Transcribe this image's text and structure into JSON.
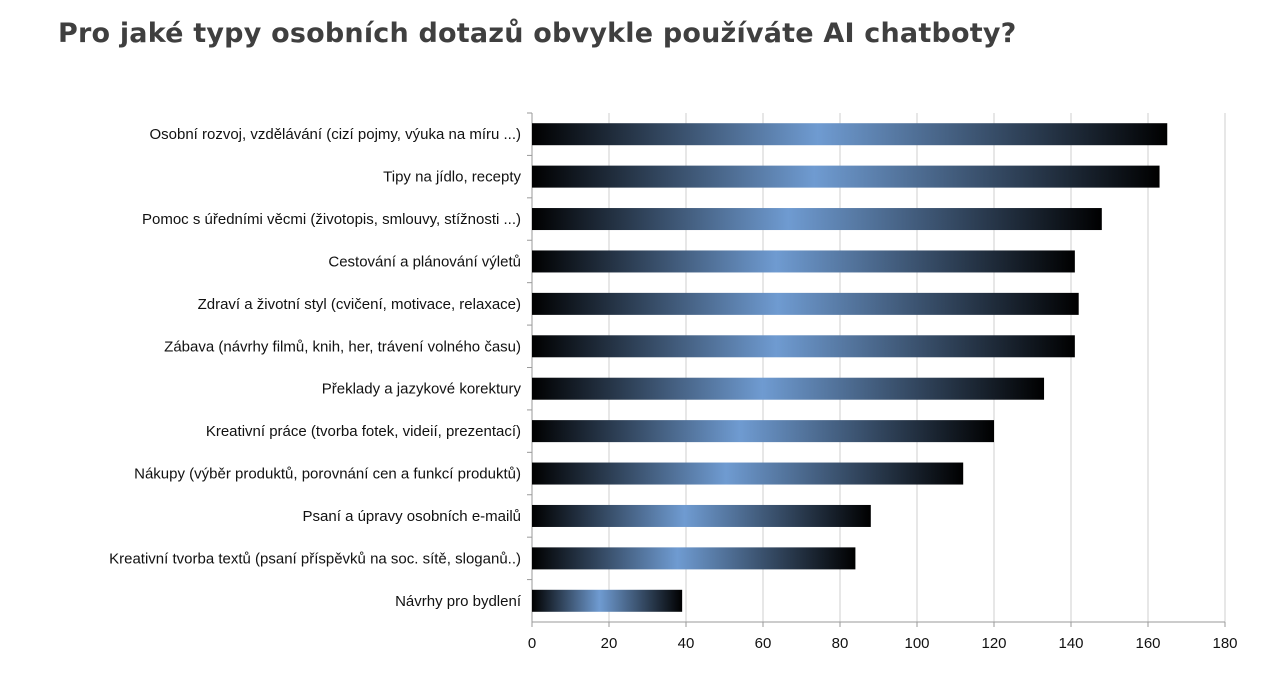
{
  "page": {
    "title": "Pro jaké typy osobních dotazů obvykle používáte AI chatboty?"
  },
  "chart_data": {
    "type": "bar",
    "orientation": "horizontal",
    "title": "",
    "xlabel": "",
    "ylabel": "",
    "categories": [
      "Osobní rozvoj, vzdělávání (cizí pojmy, výuka na míru ...)",
      "Tipy na jídlo, recepty",
      "Pomoc s úředními věcmi (životopis, smlouvy, stížnosti ...)",
      "Cestování a plánování výletů",
      "Zdraví a životní styl (cvičení, motivace, relaxace)",
      "Zábava (návrhy filmů, knih, her, trávení volného času)",
      "Překlady a jazykové korektury",
      "Kreativní práce (tvorba fotek, videií, prezentací)",
      "Nákupy (výběr produktů, porovnání cen a funkcí produktů)",
      "Psaní a úpravy osobních e-mailů",
      "Kreativní tvorba textů (psaní příspěvků na soc. sítě, sloganů..)",
      "Návrhy pro bydlení"
    ],
    "values": [
      165,
      163,
      148,
      141,
      142,
      141,
      133,
      120,
      112,
      88,
      84,
      39
    ],
    "xlim": [
      0,
      180
    ],
    "xticks": [
      0,
      20,
      40,
      60,
      80,
      100,
      120,
      140,
      160,
      180
    ],
    "grid": "vertical",
    "legend": "none",
    "colors": {
      "bar_edge": "#000000",
      "bar_mid": "#000000",
      "bar_highlight": "#6f9bd1",
      "grid": "#cfcfcf",
      "axis": "#9a9a9a",
      "title": "#3f3f3f"
    }
  }
}
